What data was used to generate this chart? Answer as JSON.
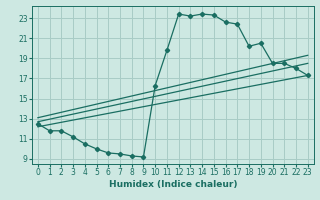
{
  "xlabel": "Humidex (Indice chaleur)",
  "background_color": "#cde8e2",
  "grid_color": "#a8ccc6",
  "line_color": "#1a6e62",
  "xlim": [
    -0.5,
    23.5
  ],
  "ylim": [
    8.5,
    24.2
  ],
  "xticks": [
    0,
    1,
    2,
    3,
    4,
    5,
    6,
    7,
    8,
    9,
    10,
    11,
    12,
    13,
    14,
    15,
    16,
    17,
    18,
    19,
    20,
    21,
    22,
    23
  ],
  "yticks": [
    9,
    11,
    13,
    15,
    17,
    19,
    21,
    23
  ],
  "curve1_x": [
    0,
    1,
    2,
    3,
    4,
    5,
    6,
    7,
    8,
    9,
    10,
    11,
    12,
    13,
    14,
    15,
    16,
    17,
    18,
    19,
    20,
    21,
    22,
    23
  ],
  "curve1_y": [
    12.5,
    11.8,
    11.8,
    11.2,
    10.5,
    10.0,
    9.6,
    9.5,
    9.3,
    9.2,
    16.3,
    19.8,
    23.4,
    23.2,
    23.4,
    23.3,
    22.6,
    22.4,
    20.2,
    20.5,
    18.5,
    18.5,
    18.0,
    17.3
  ],
  "line1_x": [
    0,
    23
  ],
  "line1_y": [
    12.2,
    17.3
  ],
  "line2_x": [
    0,
    23
  ],
  "line2_y": [
    12.7,
    18.5
  ],
  "line3_x": [
    0,
    23
  ],
  "line3_y": [
    13.1,
    19.3
  ]
}
